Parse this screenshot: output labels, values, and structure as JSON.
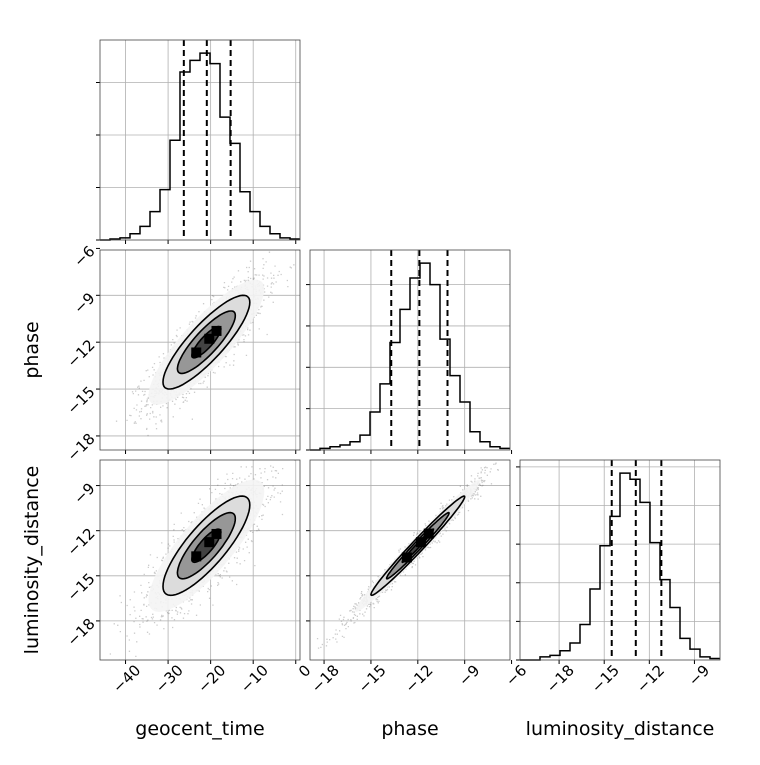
{
  "chart_data": {
    "type": "corner",
    "parameters": [
      "geocent_time",
      "phase",
      "luminosity_distance"
    ],
    "axis_ranges": {
      "geocent_time": [
        -46,
        1
      ],
      "phase": [
        -18.9,
        -6.1
      ],
      "luminosity_distance": [
        -20.6,
        -7.3
      ]
    },
    "ticks": {
      "geocent_time": [
        "-40",
        "-30",
        "-20",
        "-10",
        "0"
      ],
      "phase": [
        "-18",
        "-15",
        "-12",
        "-9",
        "-6"
      ],
      "luminosity_distance": [
        "-18",
        "-15",
        "-12",
        "-9"
      ]
    },
    "marginals": [
      {
        "parameter": "geocent_time",
        "bin_edges": [
          -46,
          -43.65,
          -41.3,
          -38.95,
          -36.6,
          -34.25,
          -31.9,
          -29.55,
          -27.2,
          -24.85,
          -22.5,
          -20.15,
          -17.8,
          -15.45,
          -13.1,
          -10.75,
          -8.4,
          -6.05,
          -3.7,
          -1.35,
          1
        ],
        "counts": [
          0,
          1,
          2,
          6,
          13,
          27,
          48,
          95,
          160,
          171,
          178,
          168,
          117,
          92,
          46,
          27,
          13,
          6,
          2,
          1
        ],
        "quantiles": [
          -26.3,
          -20.9,
          -15.3
        ]
      },
      {
        "parameter": "phase",
        "bin_edges": [
          -18.9,
          -18.26,
          -17.62,
          -16.98,
          -16.34,
          -15.7,
          -15.06,
          -14.42,
          -13.78,
          -13.14,
          -12.5,
          -11.86,
          -11.22,
          -10.58,
          -9.94,
          -9.3,
          -8.66,
          -8.02,
          -7.38,
          -6.74,
          -6.1
        ],
        "counts": [
          0,
          1,
          2,
          3,
          5,
          9,
          23,
          40,
          65,
          85,
          104,
          113,
          100,
          67,
          45,
          29,
          11,
          5,
          2,
          1
        ],
        "quantiles": [
          -13.7,
          -11.9,
          -10.1
        ]
      },
      {
        "parameter": "luminosity_distance",
        "bin_edges": [
          -20.6,
          -19.935,
          -19.27,
          -18.605,
          -17.94,
          -17.275,
          -16.61,
          -15.945,
          -15.28,
          -14.615,
          -13.95,
          -13.285,
          -12.62,
          -11.955,
          -11.29,
          -10.625,
          -9.96,
          -9.295,
          -8.63,
          -7.965,
          -7.3
        ],
        "counts": [
          0,
          0,
          2,
          3,
          6,
          11,
          23,
          46,
          74,
          93,
          121,
          117,
          102,
          76,
          52,
          34,
          14,
          7,
          2,
          1
        ],
        "quantiles": [
          -14.5,
          -12.9,
          -11.2
        ]
      }
    ],
    "joint": [
      {
        "x": "geocent_time",
        "y": "phase",
        "mean": [
          -21,
          -12
        ],
        "sd": [
          6.8,
          2.0
        ],
        "corr": 0.85,
        "contour_levels_sigma": [
          0.5,
          1,
          1.5,
          2
        ]
      },
      {
        "x": "geocent_time",
        "y": "luminosity_distance",
        "mean": [
          -21,
          -13
        ],
        "sd": [
          6.8,
          2.2
        ],
        "corr": 0.82,
        "contour_levels_sigma": [
          0.5,
          1,
          1.5,
          2
        ]
      },
      {
        "x": "phase",
        "y": "luminosity_distance",
        "mean": [
          -12,
          -13
        ],
        "sd": [
          2.0,
          2.2
        ],
        "corr": 0.985,
        "contour_levels_sigma": [
          0.5,
          1,
          1.5,
          2
        ]
      }
    ],
    "grid": true,
    "legend": "none"
  }
}
